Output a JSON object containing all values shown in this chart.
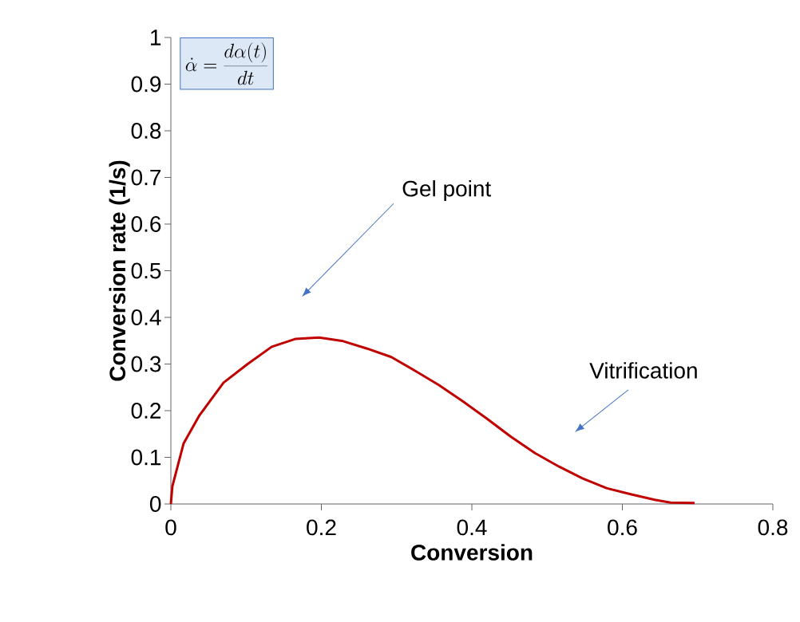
{
  "chart_data": {
    "type": "line",
    "xlabel": "Conversion",
    "ylabel": "Conversion rate (1/s)",
    "x": [
      0,
      0.002,
      0.017,
      0.038,
      0.07,
      0.102,
      0.134,
      0.166,
      0.197,
      0.229,
      0.261,
      0.293,
      0.325,
      0.356,
      0.388,
      0.42,
      0.452,
      0.484,
      0.516,
      0.547,
      0.579,
      0.611,
      0.643,
      0.664,
      0.696
    ],
    "series": [
      {
        "color": "#c00000",
        "values": [
          0,
          0.038,
          0.13,
          0.19,
          0.26,
          0.3,
          0.337,
          0.354,
          0.357,
          0.349,
          0.333,
          0.315,
          0.285,
          0.255,
          0.22,
          0.183,
          0.144,
          0.109,
          0.08,
          0.055,
          0.034,
          0.021,
          0.009,
          0.003,
          0.002
        ]
      }
    ],
    "xlim": [
      0,
      0.8
    ],
    "xticks": [
      0,
      0.2,
      0.4,
      0.6,
      0.8
    ],
    "ylim": [
      0,
      1
    ],
    "yticks": [
      0,
      0.1,
      0.2,
      0.3,
      0.4,
      0.5,
      0.6,
      0.7,
      0.8,
      0.9,
      1
    ],
    "grid": false,
    "legend": false,
    "marker": "none",
    "line_style": "solid",
    "annotations": [
      "\\dot{\\alpha} = \\frac{d\\alpha(t)}{dt}",
      "Gel point",
      "Vitrification"
    ]
  }
}
